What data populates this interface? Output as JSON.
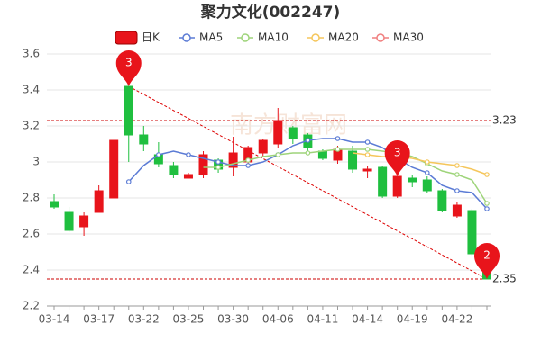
{
  "chart_data": {
    "type": "candlestick",
    "title": "聚力文化(002247)",
    "watermark": "南方财富网",
    "categories": [
      "03-14",
      null,
      null,
      "03-17",
      null,
      null,
      "03-22",
      null,
      null,
      "03-25",
      null,
      null,
      "03-30",
      null,
      null,
      "04-06",
      null,
      null,
      "04-11",
      null,
      null,
      "04-14",
      null,
      null,
      "04-19",
      null,
      null,
      "04-22",
      null,
      null
    ],
    "candle_name": "日K",
    "up_color": "#e8141b",
    "down_color": "#1fbf3f",
    "open": [
      2.78,
      2.72,
      2.64,
      2.72,
      2.8,
      3.42,
      3.15,
      3.04,
      2.98,
      2.91,
      2.93,
      3.01,
      2.97,
      3.0,
      3.05,
      3.1,
      3.19,
      3.15,
      3.06,
      3.01,
      3.06,
      2.95,
      2.97,
      2.81,
      2.91,
      2.9,
      2.84,
      2.7,
      2.73,
      2.45
    ],
    "close": [
      2.75,
      2.62,
      2.7,
      2.84,
      3.12,
      3.15,
      3.1,
      2.99,
      2.93,
      2.93,
      3.04,
      2.96,
      3.05,
      3.08,
      3.12,
      3.23,
      3.13,
      3.08,
      3.02,
      3.07,
      2.96,
      2.96,
      2.81,
      2.92,
      2.89,
      2.84,
      2.73,
      2.76,
      2.49,
      2.35
    ],
    "high": [
      2.82,
      2.75,
      2.72,
      2.87,
      3.12,
      3.42,
      3.2,
      3.11,
      3.0,
      2.94,
      3.06,
      3.02,
      3.14,
      3.09,
      3.13,
      3.3,
      3.2,
      3.16,
      3.07,
      3.09,
      3.09,
      2.98,
      2.98,
      2.92,
      2.93,
      2.92,
      2.85,
      2.78,
      2.74,
      2.45
    ],
    "low": [
      2.74,
      2.61,
      2.59,
      2.72,
      2.8,
      3.0,
      3.06,
      2.97,
      2.91,
      2.91,
      2.91,
      2.94,
      2.92,
      2.99,
      3.03,
      3.08,
      3.1,
      3.06,
      3.01,
      2.99,
      2.94,
      2.91,
      2.8,
      2.8,
      2.86,
      2.83,
      2.72,
      2.69,
      2.48,
      2.35
    ],
    "series": [
      {
        "name": "MA5",
        "color": "#5b7bd5",
        "values": [
          null,
          null,
          null,
          null,
          null,
          2.89,
          2.98,
          3.04,
          3.06,
          3.04,
          3.02,
          3.0,
          2.98,
          2.98,
          3.0,
          3.04,
          3.09,
          3.12,
          3.13,
          3.13,
          3.11,
          3.11,
          3.08,
          3.02,
          2.97,
          2.94,
          2.87,
          2.84,
          2.83,
          2.74
        ]
      },
      {
        "name": "MA10",
        "color": "#9ed47a",
        "values": [
          null,
          null,
          null,
          null,
          null,
          null,
          null,
          null,
          null,
          null,
          2.97,
          2.97,
          2.99,
          3.01,
          3.03,
          3.04,
          3.05,
          3.05,
          3.06,
          3.07,
          3.07,
          3.07,
          3.06,
          3.05,
          3.03,
          2.99,
          2.95,
          2.93,
          2.9,
          2.77
        ]
      },
      {
        "name": "MA20",
        "color": "#f5c65b",
        "values": [
          null,
          null,
          null,
          null,
          null,
          null,
          null,
          null,
          null,
          null,
          null,
          null,
          null,
          null,
          null,
          null,
          null,
          null,
          null,
          null,
          3.05,
          3.04,
          3.03,
          3.03,
          3.02,
          3.0,
          2.99,
          2.98,
          2.96,
          2.93
        ]
      },
      {
        "name": "MA30",
        "color": "#f07f7f",
        "values": [
          null,
          null,
          null,
          null,
          null,
          null,
          null,
          null,
          null,
          null,
          null,
          null,
          null,
          null,
          null,
          null,
          null,
          null,
          null,
          null,
          null,
          null,
          null,
          null,
          null,
          null,
          null,
          null,
          null,
          null
        ]
      }
    ],
    "hlines": [
      3.23,
      2.35
    ],
    "annotations": [
      {
        "index": 5,
        "label": "3"
      },
      {
        "index": 23,
        "label": "3"
      },
      {
        "index": 29,
        "label": "2"
      }
    ],
    "ylim": [
      2.2,
      3.6
    ],
    "yticks": [
      2.2,
      2.4,
      2.6,
      2.8,
      3,
      3.2,
      3.4,
      3.6
    ],
    "grid": true
  }
}
